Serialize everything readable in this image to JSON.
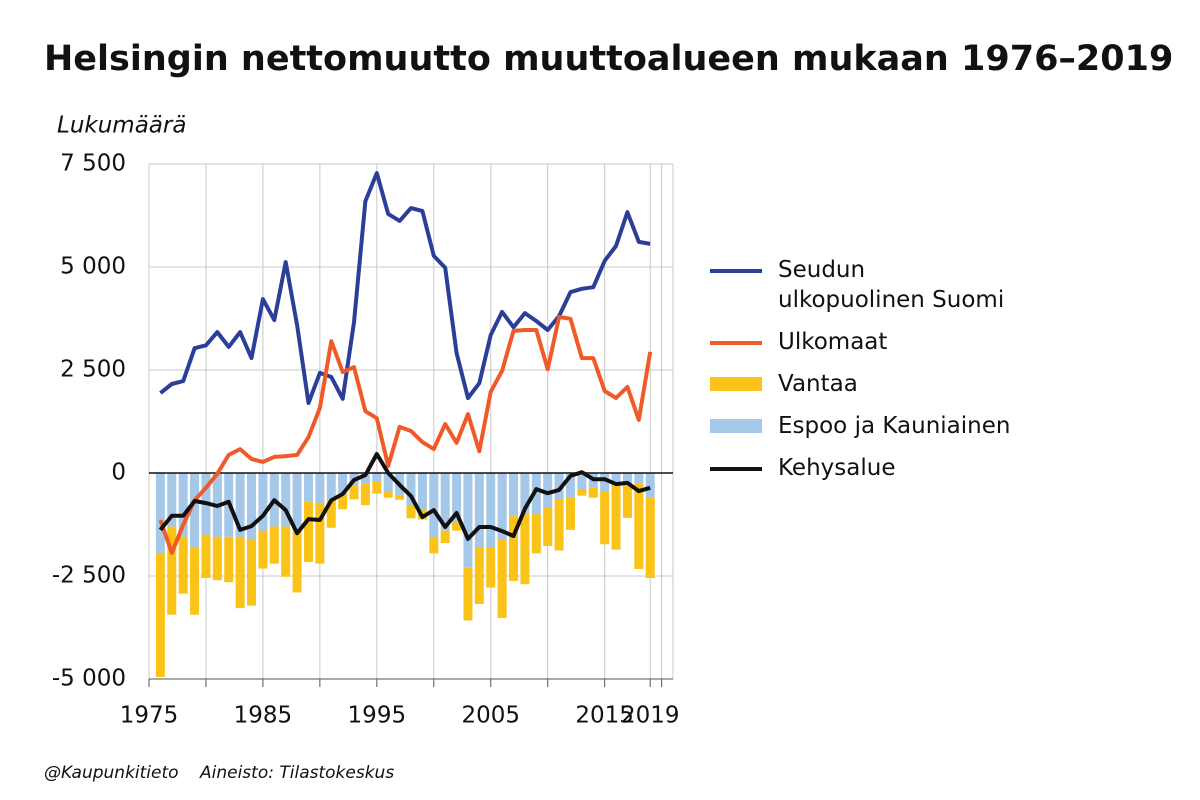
{
  "chart_data": {
    "type": "combo",
    "title": "Helsingin nettomuutto muuttoalueen mukaan 1976–2019",
    "y_label": "Lukumäärä",
    "footer_left": "@Kaupunkitieto",
    "footer_right": "Aineisto: Tilastokeskus",
    "x": [
      1976,
      1977,
      1978,
      1979,
      1980,
      1981,
      1982,
      1983,
      1984,
      1985,
      1986,
      1987,
      1988,
      1989,
      1990,
      1991,
      1992,
      1993,
      1994,
      1995,
      1996,
      1997,
      1998,
      1999,
      2000,
      2001,
      2002,
      2003,
      2004,
      2005,
      2006,
      2007,
      2008,
      2009,
      2010,
      2011,
      2012,
      2013,
      2014,
      2015,
      2016,
      2017,
      2018,
      2019
    ],
    "xlim": [
      1975,
      2021
    ],
    "xticks": [
      1975,
      1985,
      1995,
      2005,
      2015,
      2019
    ],
    "xgrid": [
      1980,
      1990,
      2000,
      2010,
      2020
    ],
    "ylim": [
      -5000,
      7500
    ],
    "yticks": [
      {
        "value": -5000,
        "label": "-5 000"
      },
      {
        "value": -2500,
        "label": "-2 500"
      },
      0,
      {
        "value": 2500,
        "label": "2 500"
      },
      {
        "value": 5000,
        "label": "5 000"
      },
      {
        "value": 7500,
        "label": "7 500"
      }
    ],
    "grid": true,
    "series": [
      {
        "name": "Seudun\nulkopuolinen Suomi",
        "type": "line",
        "color": "#2b3f98",
        "values": [
          1940,
          2160,
          2230,
          3030,
          3100,
          3420,
          3060,
          3420,
          2790,
          4220,
          3710,
          5120,
          3590,
          1700,
          2430,
          2330,
          1800,
          3660,
          6600,
          7280,
          6290,
          6120,
          6430,
          6360,
          5270,
          4980,
          2910,
          1820,
          2180,
          3350,
          3910,
          3540,
          3880,
          3690,
          3470,
          3810,
          4390,
          4470,
          4510,
          5150,
          5510,
          6330,
          5610,
          5560
        ]
      },
      {
        "name": "Ulkomaat",
        "type": "line",
        "color": "#f05a28",
        "values": [
          -1140,
          -1940,
          -1260,
          -660,
          -360,
          -20,
          440,
          580,
          340,
          270,
          390,
          410,
          440,
          870,
          1580,
          3200,
          2450,
          2570,
          1500,
          1330,
          170,
          1120,
          1020,
          750,
          580,
          1190,
          730,
          1430,
          530,
          1970,
          2480,
          3450,
          3470,
          3470,
          2520,
          3790,
          3740,
          2790,
          2790,
          1990,
          1820,
          2090,
          1290,
          2940
        ]
      },
      {
        "name": "Vantaa",
        "type": "bar",
        "color": "#fbc318",
        "values": [
          -3010,
          -2140,
          -1380,
          -1640,
          -1050,
          -1050,
          -1100,
          -1730,
          -1620,
          -920,
          -900,
          -1220,
          -1500,
          -1460,
          -1450,
          -680,
          -380,
          -340,
          -530,
          -300,
          -150,
          -100,
          -300,
          -230,
          -400,
          -300,
          -200,
          -1280,
          -1380,
          -980,
          -1920,
          -1570,
          -1700,
          -950,
          -920,
          -1230,
          -780,
          -150,
          -250,
          -1280,
          -1660,
          -790,
          -2080,
          -1950
        ]
      },
      {
        "name": "Espoo ja Kauniainen",
        "type": "bar",
        "color": "#a5c8e8",
        "values": [
          -1940,
          -1300,
          -1550,
          -1800,
          -1500,
          -1550,
          -1550,
          -1550,
          -1600,
          -1400,
          -1300,
          -1300,
          -1400,
          -700,
          -750,
          -650,
          -500,
          -300,
          -250,
          -200,
          -450,
          -550,
          -800,
          -900,
          -1550,
          -1400,
          -1200,
          -2300,
          -1800,
          -1800,
          -1600,
          -1050,
          -1000,
          -1000,
          -850,
          -650,
          -600,
          -400,
          -350,
          -450,
          -200,
          -300,
          -250,
          -600
        ]
      },
      {
        "name": "Kehysalue",
        "type": "line",
        "color": "#111111",
        "values": [
          -1380,
          -1040,
          -1040,
          -680,
          -730,
          -800,
          -700,
          -1380,
          -1290,
          -1040,
          -660,
          -900,
          -1460,
          -1120,
          -1140,
          -660,
          -510,
          -170,
          -50,
          460,
          0,
          -290,
          -560,
          -1070,
          -900,
          -1310,
          -970,
          -1600,
          -1310,
          -1310,
          -1410,
          -1530,
          -870,
          -390,
          -490,
          -410,
          -70,
          20,
          -150,
          -150,
          -270,
          -240,
          -440,
          -360
        ]
      }
    ]
  }
}
